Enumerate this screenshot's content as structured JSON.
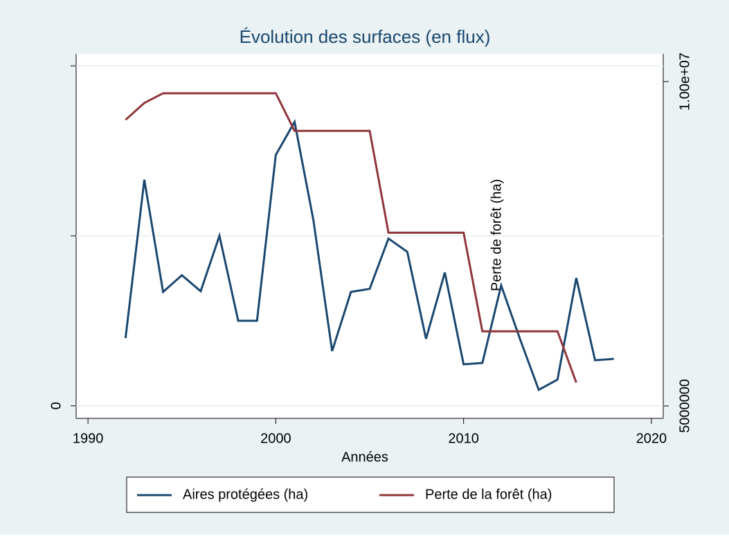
{
  "chart_data": {
    "type": "line",
    "title": "Évolution des surfaces (en flux)",
    "xlabel": "Années",
    "y2label": "Perte de forêt (ha)",
    "xlim": [
      1989.37,
      2020.63
    ],
    "xticks": [
      1990,
      2000,
      2010,
      2020
    ],
    "ylim": [
      -3700,
      103500
    ],
    "yticks": [
      0,
      {
        "value": 50000,
        "label": null
      },
      {
        "value": 100000,
        "label": null
      }
    ],
    "y2lim": [
      4808000,
      10426000
    ],
    "y2ticks": [
      {
        "value": 5000000,
        "label": "5000000"
      },
      {
        "value": 10000000,
        "label": "1.00e+07"
      }
    ],
    "grid": true,
    "legend": "bottom",
    "series": [
      {
        "name": "Aires protégées (ha)",
        "color": "#1a476f",
        "x": [
          1992,
          1993,
          1994,
          1995,
          1996,
          1997,
          1998,
          1999,
          2000,
          2001,
          2002,
          2003,
          2004,
          2005,
          2006,
          2007,
          2008,
          2009,
          2010,
          2011,
          2012,
          2013,
          2014,
          2015,
          2016,
          2017,
          2018
        ],
        "values": [
          19900,
          66500,
          33500,
          38400,
          33700,
          50000,
          25000,
          25000,
          73800,
          83500,
          54700,
          16100,
          33500,
          34400,
          49200,
          45300,
          19700,
          39200,
          12200,
          12600,
          35400,
          19700,
          4700,
          7700,
          37600,
          13400,
          13800
        ]
      },
      {
        "name": "Perte de la forêt (ha)",
        "color": "#90353b",
        "axis": "y2",
        "x": [
          1992,
          1993,
          1994,
          1995,
          1996,
          1997,
          1998,
          1999,
          2000,
          2001,
          2002,
          2003,
          2004,
          2005,
          2006,
          2007,
          2008,
          2009,
          2010,
          2011,
          2012,
          2013,
          2014,
          2015,
          2016
        ],
        "values": [
          9410000,
          9670000,
          9820000,
          9820000,
          9820000,
          9820000,
          9820000,
          9820000,
          9820000,
          9240000,
          9240000,
          9240000,
          9240000,
          9240000,
          7670000,
          7670000,
          7670000,
          7670000,
          7670000,
          6150000,
          6150000,
          6150000,
          6150000,
          6150000,
          5360000
        ]
      }
    ]
  }
}
